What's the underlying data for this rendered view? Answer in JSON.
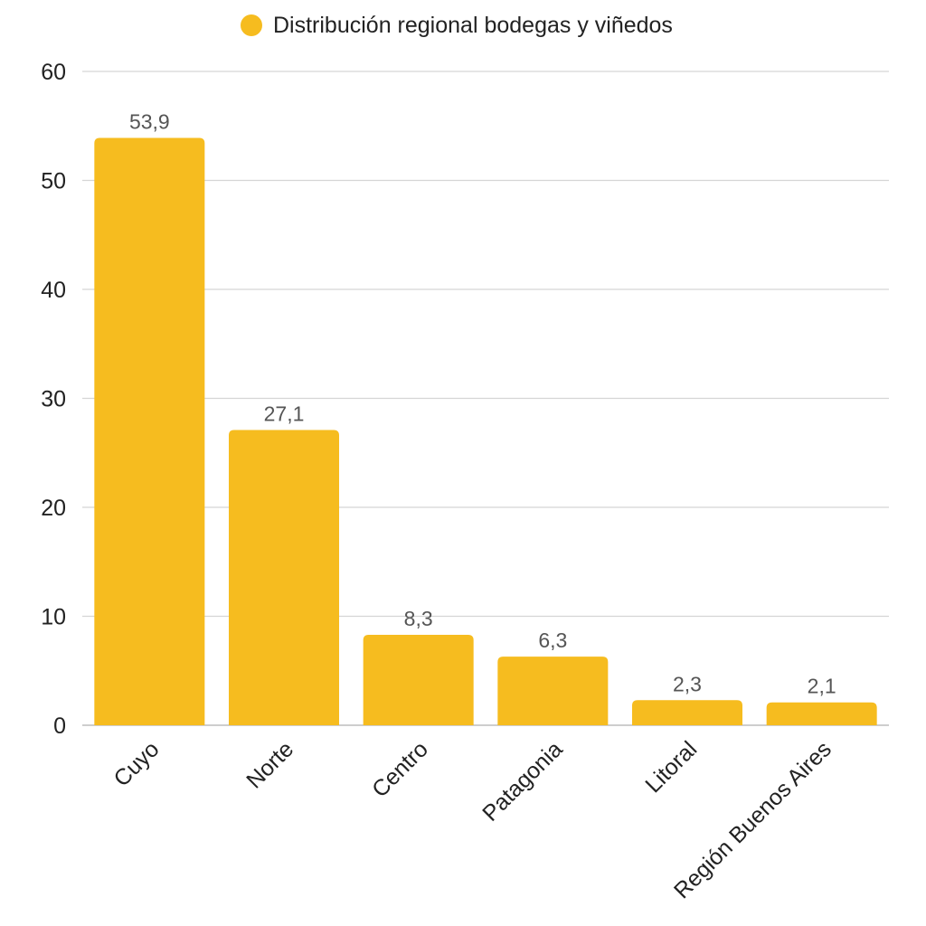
{
  "chart_data": {
    "type": "bar",
    "categories": [
      "Cuyo",
      "Norte",
      "Centro",
      "Patagonia",
      "Litoral",
      "Región Buenos Aires"
    ],
    "series": [
      {
        "name": "Distribución regional bodegas y viñedos",
        "values": [
          53.9,
          27.1,
          8.3,
          6.3,
          2.3,
          2.1
        ],
        "value_labels": [
          "53,9",
          "27,1",
          "8,3",
          "6,3",
          "2,3",
          "2,1"
        ],
        "color": "#F6BC1F"
      }
    ],
    "y_ticks": [
      "0",
      "10",
      "20",
      "30",
      "40",
      "50",
      "60"
    ],
    "ylim": [
      0,
      60
    ],
    "grid": true,
    "legend_position": "top-center",
    "title": "",
    "xlabel": "",
    "ylabel": ""
  }
}
